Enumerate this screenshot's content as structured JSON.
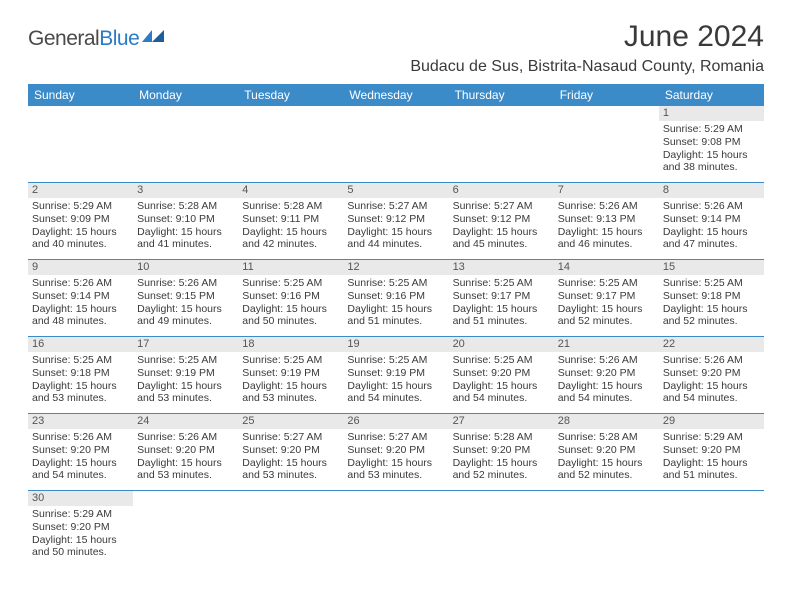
{
  "header": {
    "logo_general": "General",
    "logo_blue": "Blue",
    "month_title": "June 2024",
    "location": "Budacu de Sus, Bistrita-Nasaud County, Romania"
  },
  "colors": {
    "header_bar": "#3b8bc9",
    "text": "#3a3a3a",
    "daynum_bg": "#e9e9e9",
    "logo_blue": "#2b7cc4"
  },
  "weekdays": [
    "Sunday",
    "Monday",
    "Tuesday",
    "Wednesday",
    "Thursday",
    "Friday",
    "Saturday"
  ],
  "weeks": [
    [
      {
        "n": "",
        "sr": "",
        "ss": "",
        "dl": ""
      },
      {
        "n": "",
        "sr": "",
        "ss": "",
        "dl": ""
      },
      {
        "n": "",
        "sr": "",
        "ss": "",
        "dl": ""
      },
      {
        "n": "",
        "sr": "",
        "ss": "",
        "dl": ""
      },
      {
        "n": "",
        "sr": "",
        "ss": "",
        "dl": ""
      },
      {
        "n": "",
        "sr": "",
        "ss": "",
        "dl": ""
      },
      {
        "n": "1",
        "sr": "Sunrise: 5:29 AM",
        "ss": "Sunset: 9:08 PM",
        "dl": "Daylight: 15 hours and 38 minutes."
      }
    ],
    [
      {
        "n": "2",
        "sr": "Sunrise: 5:29 AM",
        "ss": "Sunset: 9:09 PM",
        "dl": "Daylight: 15 hours and 40 minutes."
      },
      {
        "n": "3",
        "sr": "Sunrise: 5:28 AM",
        "ss": "Sunset: 9:10 PM",
        "dl": "Daylight: 15 hours and 41 minutes."
      },
      {
        "n": "4",
        "sr": "Sunrise: 5:28 AM",
        "ss": "Sunset: 9:11 PM",
        "dl": "Daylight: 15 hours and 42 minutes."
      },
      {
        "n": "5",
        "sr": "Sunrise: 5:27 AM",
        "ss": "Sunset: 9:12 PM",
        "dl": "Daylight: 15 hours and 44 minutes."
      },
      {
        "n": "6",
        "sr": "Sunrise: 5:27 AM",
        "ss": "Sunset: 9:12 PM",
        "dl": "Daylight: 15 hours and 45 minutes."
      },
      {
        "n": "7",
        "sr": "Sunrise: 5:26 AM",
        "ss": "Sunset: 9:13 PM",
        "dl": "Daylight: 15 hours and 46 minutes."
      },
      {
        "n": "8",
        "sr": "Sunrise: 5:26 AM",
        "ss": "Sunset: 9:14 PM",
        "dl": "Daylight: 15 hours and 47 minutes."
      }
    ],
    [
      {
        "n": "9",
        "sr": "Sunrise: 5:26 AM",
        "ss": "Sunset: 9:14 PM",
        "dl": "Daylight: 15 hours and 48 minutes."
      },
      {
        "n": "10",
        "sr": "Sunrise: 5:26 AM",
        "ss": "Sunset: 9:15 PM",
        "dl": "Daylight: 15 hours and 49 minutes."
      },
      {
        "n": "11",
        "sr": "Sunrise: 5:25 AM",
        "ss": "Sunset: 9:16 PM",
        "dl": "Daylight: 15 hours and 50 minutes."
      },
      {
        "n": "12",
        "sr": "Sunrise: 5:25 AM",
        "ss": "Sunset: 9:16 PM",
        "dl": "Daylight: 15 hours and 51 minutes."
      },
      {
        "n": "13",
        "sr": "Sunrise: 5:25 AM",
        "ss": "Sunset: 9:17 PM",
        "dl": "Daylight: 15 hours and 51 minutes."
      },
      {
        "n": "14",
        "sr": "Sunrise: 5:25 AM",
        "ss": "Sunset: 9:17 PM",
        "dl": "Daylight: 15 hours and 52 minutes."
      },
      {
        "n": "15",
        "sr": "Sunrise: 5:25 AM",
        "ss": "Sunset: 9:18 PM",
        "dl": "Daylight: 15 hours and 52 minutes."
      }
    ],
    [
      {
        "n": "16",
        "sr": "Sunrise: 5:25 AM",
        "ss": "Sunset: 9:18 PM",
        "dl": "Daylight: 15 hours and 53 minutes."
      },
      {
        "n": "17",
        "sr": "Sunrise: 5:25 AM",
        "ss": "Sunset: 9:19 PM",
        "dl": "Daylight: 15 hours and 53 minutes."
      },
      {
        "n": "18",
        "sr": "Sunrise: 5:25 AM",
        "ss": "Sunset: 9:19 PM",
        "dl": "Daylight: 15 hours and 53 minutes."
      },
      {
        "n": "19",
        "sr": "Sunrise: 5:25 AM",
        "ss": "Sunset: 9:19 PM",
        "dl": "Daylight: 15 hours and 54 minutes."
      },
      {
        "n": "20",
        "sr": "Sunrise: 5:25 AM",
        "ss": "Sunset: 9:20 PM",
        "dl": "Daylight: 15 hours and 54 minutes."
      },
      {
        "n": "21",
        "sr": "Sunrise: 5:26 AM",
        "ss": "Sunset: 9:20 PM",
        "dl": "Daylight: 15 hours and 54 minutes."
      },
      {
        "n": "22",
        "sr": "Sunrise: 5:26 AM",
        "ss": "Sunset: 9:20 PM",
        "dl": "Daylight: 15 hours and 54 minutes."
      }
    ],
    [
      {
        "n": "23",
        "sr": "Sunrise: 5:26 AM",
        "ss": "Sunset: 9:20 PM",
        "dl": "Daylight: 15 hours and 54 minutes."
      },
      {
        "n": "24",
        "sr": "Sunrise: 5:26 AM",
        "ss": "Sunset: 9:20 PM",
        "dl": "Daylight: 15 hours and 53 minutes."
      },
      {
        "n": "25",
        "sr": "Sunrise: 5:27 AM",
        "ss": "Sunset: 9:20 PM",
        "dl": "Daylight: 15 hours and 53 minutes."
      },
      {
        "n": "26",
        "sr": "Sunrise: 5:27 AM",
        "ss": "Sunset: 9:20 PM",
        "dl": "Daylight: 15 hours and 53 minutes."
      },
      {
        "n": "27",
        "sr": "Sunrise: 5:28 AM",
        "ss": "Sunset: 9:20 PM",
        "dl": "Daylight: 15 hours and 52 minutes."
      },
      {
        "n": "28",
        "sr": "Sunrise: 5:28 AM",
        "ss": "Sunset: 9:20 PM",
        "dl": "Daylight: 15 hours and 52 minutes."
      },
      {
        "n": "29",
        "sr": "Sunrise: 5:29 AM",
        "ss": "Sunset: 9:20 PM",
        "dl": "Daylight: 15 hours and 51 minutes."
      }
    ],
    [
      {
        "n": "30",
        "sr": "Sunrise: 5:29 AM",
        "ss": "Sunset: 9:20 PM",
        "dl": "Daylight: 15 hours and 50 minutes."
      },
      {
        "n": "",
        "sr": "",
        "ss": "",
        "dl": ""
      },
      {
        "n": "",
        "sr": "",
        "ss": "",
        "dl": ""
      },
      {
        "n": "",
        "sr": "",
        "ss": "",
        "dl": ""
      },
      {
        "n": "",
        "sr": "",
        "ss": "",
        "dl": ""
      },
      {
        "n": "",
        "sr": "",
        "ss": "",
        "dl": ""
      },
      {
        "n": "",
        "sr": "",
        "ss": "",
        "dl": ""
      }
    ]
  ]
}
